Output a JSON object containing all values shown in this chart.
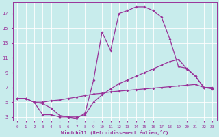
{
  "background_color": "#c8ecec",
  "grid_color": "#ffffff",
  "line_color": "#993399",
  "xlabel": "Windchill (Refroidissement éolien,°C)",
  "xlim": [
    -0.5,
    23.5
  ],
  "ylim": [
    2.5,
    18.5
  ],
  "yticks": [
    3,
    5,
    7,
    9,
    11,
    13,
    15,
    17
  ],
  "xticks": [
    0,
    1,
    2,
    3,
    4,
    5,
    6,
    7,
    8,
    9,
    10,
    11,
    12,
    13,
    14,
    15,
    16,
    17,
    18,
    19,
    20,
    21,
    22,
    23
  ],
  "line1_x": [
    0,
    1,
    2,
    3,
    4,
    5,
    6,
    7,
    8,
    9,
    10,
    11,
    12,
    13,
    14,
    15,
    16,
    17,
    18,
    19,
    20,
    21,
    22,
    23
  ],
  "line1_y": [
    5.5,
    5.5,
    5.0,
    4.8,
    4.2,
    3.2,
    3.0,
    2.8,
    3.5,
    8.0,
    14.5,
    12.0,
    17.0,
    17.4,
    17.9,
    17.9,
    17.4,
    16.5,
    13.5,
    9.8,
    9.6,
    8.5,
    7.0,
    6.9
  ],
  "line2_x": [
    0,
    1,
    2,
    3,
    4,
    5,
    6,
    7,
    8,
    9,
    10,
    11,
    12,
    13,
    14,
    15,
    16,
    17,
    18,
    19,
    20,
    21,
    22,
    23
  ],
  "line2_y": [
    5.5,
    5.5,
    5.0,
    5.0,
    5.2,
    5.3,
    5.5,
    5.7,
    5.9,
    6.1,
    6.2,
    6.4,
    6.5,
    6.6,
    6.7,
    6.8,
    6.9,
    7.0,
    7.1,
    7.2,
    7.3,
    7.4,
    7.0,
    7.0
  ],
  "line3_x": [
    0,
    1,
    2,
    3,
    4,
    5,
    6,
    7,
    8,
    9,
    10,
    11,
    12,
    13,
    14,
    15,
    16,
    17,
    18,
    19,
    20,
    21,
    22,
    23
  ],
  "line3_y": [
    5.5,
    5.5,
    5.0,
    3.3,
    3.3,
    3.0,
    3.0,
    3.0,
    3.3,
    5.0,
    6.0,
    6.8,
    7.5,
    8.0,
    8.5,
    9.0,
    9.5,
    10.0,
    10.5,
    10.8,
    9.5,
    8.5,
    7.0,
    6.8
  ]
}
